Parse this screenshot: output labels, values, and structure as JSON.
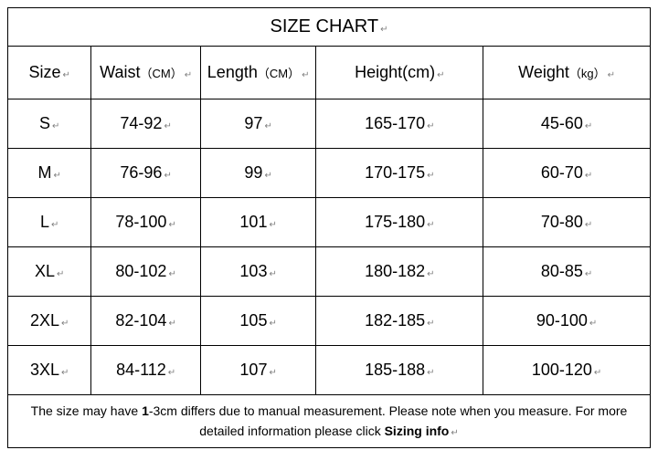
{
  "table": {
    "type": "table",
    "title": "SIZE CHART",
    "columns": [
      {
        "label": "Size",
        "unit": ""
      },
      {
        "label": "Waist",
        "unit": "（CM）"
      },
      {
        "label": "Length",
        "unit": "（CM）"
      },
      {
        "label": "Height(cm)",
        "unit": ""
      },
      {
        "label": "Weight",
        "unit": "（kg）"
      }
    ],
    "rows": [
      [
        "S",
        "74-92",
        "97",
        "165-170",
        "45-60"
      ],
      [
        "M",
        "76-96",
        "99",
        "170-175",
        "60-70"
      ],
      [
        "L",
        "78-100",
        "101",
        "175-180",
        "70-80"
      ],
      [
        "XL",
        "80-102",
        "103",
        "180-182",
        "80-85"
      ],
      [
        "2XL",
        "82-104",
        "105",
        "182-185",
        "90-100"
      ],
      [
        "3XL",
        "84-112",
        "107",
        "185-188",
        "100-120"
      ]
    ],
    "footer": {
      "pre": "The size may have ",
      "bold1": "1",
      "mid": "-3cm differs due to manual measurement. Please note when you measure. For more detailed information please click ",
      "bold2": "Sizing info"
    },
    "return_glyph": "↵",
    "border_color": "#000000",
    "background_color": "#ffffff",
    "text_color": "#000000",
    "return_mark_color": "#808080",
    "title_fontsize": 20,
    "header_fontsize": 18,
    "cell_fontsize": 18,
    "unit_fontsize": 13,
    "footer_fontsize": 14,
    "column_widths_pct": [
      13,
      17,
      18,
      26,
      26
    ]
  }
}
